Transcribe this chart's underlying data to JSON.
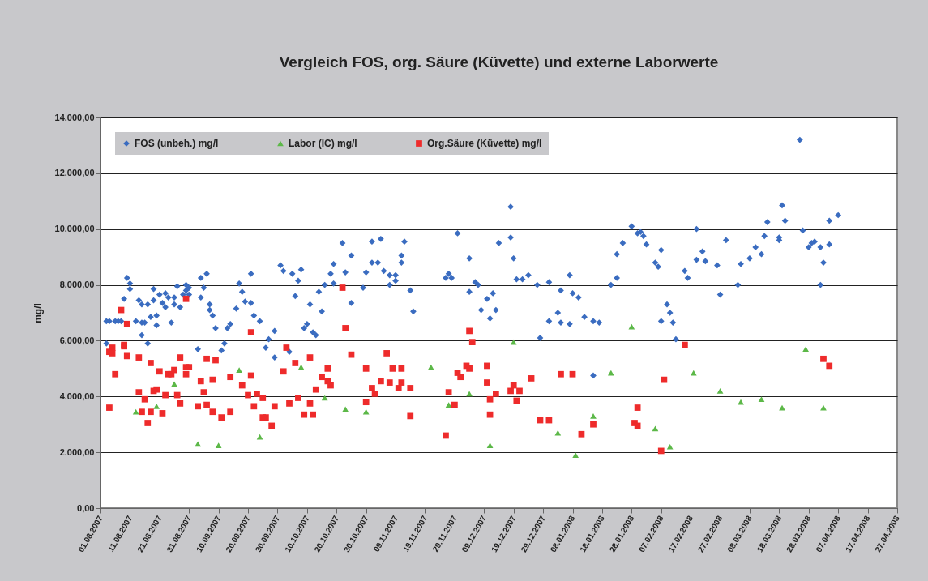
{
  "chart_data": {
    "type": "scatter",
    "title": "Vergleich FOS, org. Säure (Küvette) und externe Laborwerte",
    "ylabel": "mg/l",
    "ylim": [
      0,
      14000
    ],
    "yticks": [
      {
        "value": 0,
        "label": "0,00"
      },
      {
        "value": 2000,
        "label": "2.000,00"
      },
      {
        "value": 4000,
        "label": "4.000,00"
      },
      {
        "value": 6000,
        "label": "6.000,00"
      },
      {
        "value": 8000,
        "label": "8.000,00"
      },
      {
        "value": 10000,
        "label": "10.000,00"
      },
      {
        "value": 12000,
        "label": "12.000,00"
      },
      {
        "value": 14000,
        "label": "14.000,00"
      }
    ],
    "xlim": [
      "2007-08-01",
      "2008-04-27"
    ],
    "xticks": [
      {
        "value": "2007-08-01",
        "label": "01.08.2007"
      },
      {
        "value": "2007-08-11",
        "label": "11.08.2007"
      },
      {
        "value": "2007-08-21",
        "label": "21.08.2007"
      },
      {
        "value": "2007-08-31",
        "label": "31.08.2007"
      },
      {
        "value": "2007-09-10",
        "label": "10.09.2007"
      },
      {
        "value": "2007-09-20",
        "label": "20.09.2007"
      },
      {
        "value": "2007-09-30",
        "label": "30.09.2007"
      },
      {
        "value": "2007-10-10",
        "label": "10.10.2007"
      },
      {
        "value": "2007-10-20",
        "label": "20.10.2007"
      },
      {
        "value": "2007-10-30",
        "label": "30.10.2007"
      },
      {
        "value": "2007-11-09",
        "label": "09.11.2007"
      },
      {
        "value": "2007-11-19",
        "label": "19.11.2007"
      },
      {
        "value": "2007-11-29",
        "label": "29.11.2007"
      },
      {
        "value": "2007-12-09",
        "label": "09.12.2007"
      },
      {
        "value": "2007-12-19",
        "label": "19.12.2007"
      },
      {
        "value": "2007-12-29",
        "label": "29.12.2007"
      },
      {
        "value": "2008-01-08",
        "label": "08.01.2008"
      },
      {
        "value": "2008-01-18",
        "label": "18.01.2008"
      },
      {
        "value": "2008-01-28",
        "label": "28.01.2008"
      },
      {
        "value": "2008-02-07",
        "label": "07.02.2008"
      },
      {
        "value": "2008-02-17",
        "label": "17.02.2008"
      },
      {
        "value": "2008-02-27",
        "label": "27.02.2008"
      },
      {
        "value": "2008-03-08",
        "label": "08.03.2008"
      },
      {
        "value": "2008-03-18",
        "label": "18.03.2008"
      },
      {
        "value": "2008-03-28",
        "label": "28.03.2008"
      },
      {
        "value": "2008-04-07",
        "label": "07.04.2008"
      },
      {
        "value": "2008-04-17",
        "label": "17.04.2008"
      },
      {
        "value": "2008-04-27",
        "label": "27.04.2008"
      }
    ],
    "grid": "y",
    "legend": "top left",
    "series": [
      {
        "name": "FOS (unbeh.) mg/l",
        "color": "#3a6cc0",
        "marker": "diamond",
        "x": [
          "2007-08-03",
          "2007-08-03",
          "2007-08-04",
          "2007-08-06",
          "2007-08-07",
          "2007-08-08",
          "2007-08-09",
          "2007-08-10",
          "2007-08-11",
          "2007-08-11",
          "2007-08-13",
          "2007-08-14",
          "2007-08-15",
          "2007-08-15",
          "2007-08-15",
          "2007-08-16",
          "2007-08-17",
          "2007-08-17",
          "2007-08-18",
          "2007-08-19",
          "2007-08-19",
          "2007-08-20",
          "2007-08-20",
          "2007-08-21",
          "2007-08-22",
          "2007-08-23",
          "2007-08-23",
          "2007-08-24",
          "2007-08-25",
          "2007-08-26",
          "2007-08-26",
          "2007-08-27",
          "2007-08-28",
          "2007-08-29",
          "2007-08-30",
          "2007-08-30",
          "2007-08-31",
          "2007-08-31",
          "2007-09-03",
          "2007-09-04",
          "2007-09-04",
          "2007-09-05",
          "2007-09-06",
          "2007-09-07",
          "2007-09-07",
          "2007-09-08",
          "2007-09-09",
          "2007-09-11",
          "2007-09-12",
          "2007-09-13",
          "2007-09-14",
          "2007-09-16",
          "2007-09-17",
          "2007-09-18",
          "2007-09-19",
          "2007-09-21",
          "2007-09-21",
          "2007-09-22",
          "2007-09-24",
          "2007-09-26",
          "2007-09-27",
          "2007-09-29",
          "2007-09-29",
          "2007-10-01",
          "2007-10-02",
          "2007-10-04",
          "2007-10-05",
          "2007-10-06",
          "2007-10-07",
          "2007-10-08",
          "2007-10-09",
          "2007-10-10",
          "2007-10-11",
          "2007-10-12",
          "2007-10-13",
          "2007-10-14",
          "2007-10-15",
          "2007-10-16",
          "2007-10-18",
          "2007-10-19",
          "2007-10-19",
          "2007-10-22",
          "2007-10-23",
          "2007-10-25",
          "2007-10-25",
          "2007-10-29",
          "2007-10-30",
          "2007-11-01",
          "2007-11-01",
          "2007-11-03",
          "2007-11-04",
          "2007-11-05",
          "2007-11-07",
          "2007-11-07",
          "2007-11-09",
          "2007-11-09",
          "2007-11-11",
          "2007-11-11",
          "2007-11-12",
          "2007-11-14",
          "2007-11-15",
          "2007-11-26",
          "2007-11-27",
          "2007-11-28",
          "2007-11-30",
          "2007-12-04",
          "2007-12-04",
          "2007-12-06",
          "2007-12-07",
          "2007-12-08",
          "2007-12-10",
          "2007-12-11",
          "2007-12-12",
          "2007-12-13",
          "2007-12-14",
          "2007-12-18",
          "2007-12-18",
          "2007-12-19",
          "2007-12-20",
          "2007-12-22",
          "2007-12-24",
          "2007-12-27",
          "2007-12-28",
          "2007-12-31",
          "2007-12-31",
          "2008-01-03",
          "2008-01-04",
          "2008-01-04",
          "2008-01-07",
          "2008-01-07",
          "2008-01-08",
          "2008-01-10",
          "2008-01-12",
          "2008-01-15",
          "2008-01-15",
          "2008-01-17",
          "2008-01-21",
          "2008-01-23",
          "2008-01-23",
          "2008-01-25",
          "2008-01-28",
          "2008-01-30",
          "2008-01-31",
          "2008-02-01",
          "2008-02-02",
          "2008-02-05",
          "2008-02-06",
          "2008-02-07",
          "2008-02-07",
          "2008-02-09",
          "2008-02-10",
          "2008-02-11",
          "2008-02-12",
          "2008-02-15",
          "2008-02-16",
          "2008-02-19",
          "2008-02-19",
          "2008-02-21",
          "2008-02-22",
          "2008-02-26",
          "2008-02-27",
          "2008-02-29",
          "2008-03-04",
          "2008-03-05",
          "2008-03-08",
          "2008-03-10",
          "2008-03-12",
          "2008-03-13",
          "2008-03-14",
          "2008-03-18",
          "2008-03-18",
          "2008-03-19",
          "2008-03-20",
          "2008-03-25",
          "2008-03-26",
          "2008-03-28",
          "2008-03-29",
          "2008-03-30",
          "2008-04-01",
          "2008-04-01",
          "2008-04-02",
          "2008-04-04",
          "2008-04-04",
          "2008-04-07"
        ],
        "values": [
          6700,
          5900,
          6700,
          6700,
          6700,
          6700,
          7500,
          8250,
          8050,
          7850,
          6700,
          7450,
          7300,
          6650,
          6200,
          6650,
          5900,
          7300,
          6850,
          7850,
          7450,
          6900,
          6550,
          7650,
          7350,
          7200,
          7700,
          7550,
          6650,
          7550,
          7300,
          7950,
          7200,
          7650,
          7800,
          8000,
          7900,
          7650,
          5700,
          8250,
          7550,
          7900,
          8400,
          7300,
          7100,
          6900,
          6450,
          5650,
          5900,
          6450,
          6600,
          7150,
          8050,
          7750,
          7400,
          8400,
          7350,
          6900,
          6700,
          5750,
          6050,
          6350,
          5400,
          8700,
          8500,
          5600,
          8400,
          7600,
          8150,
          8550,
          6450,
          6600,
          7300,
          6300,
          6200,
          7750,
          7050,
          8000,
          8400,
          8750,
          8050,
          9500,
          8450,
          9050,
          7350,
          7900,
          8450,
          8800,
          9550,
          8800,
          9650,
          8500,
          8000,
          8350,
          8350,
          8150,
          8800,
          9050,
          9550,
          7800,
          7050,
          8250,
          8400,
          8250,
          9850,
          7750,
          8950,
          8100,
          8000,
          7100,
          7500,
          6800,
          7700,
          7100,
          9500,
          10800,
          9700,
          8950,
          8200,
          8200,
          8350,
          8000,
          6100,
          8100,
          6700,
          7000,
          7800,
          6650,
          8350,
          6600,
          7700,
          7550,
          6850,
          4750,
          6700,
          6650,
          8000,
          8250,
          9100,
          9500,
          10100,
          9850,
          9900,
          9750,
          9450,
          8800,
          8650,
          9250,
          6700,
          7300,
          7000,
          6650,
          6050,
          8500,
          8250,
          10000,
          8900,
          9200,
          8850,
          8700,
          7650,
          9600,
          8000,
          8750,
          8950,
          9350,
          9100,
          9750,
          10250,
          9700,
          9600,
          10850,
          10300,
          13200,
          9950,
          9350,
          9500,
          9550,
          9350,
          8000,
          8800,
          10300,
          9450,
          10500
        ]
      },
      {
        "name": "Labor (IC) mg/l",
        "color": "#5cb848",
        "marker": "triangle",
        "x": [
          "2007-08-13",
          "2007-08-20",
          "2007-08-26",
          "2007-09-03",
          "2007-09-10",
          "2007-09-17",
          "2007-09-24",
          "2007-10-08",
          "2007-10-16",
          "2007-10-23",
          "2007-10-30",
          "2007-11-21",
          "2007-11-27",
          "2007-12-04",
          "2007-12-11",
          "2007-12-19",
          "2008-01-03",
          "2008-01-09",
          "2008-01-15",
          "2008-01-21",
          "2008-01-28",
          "2008-02-05",
          "2008-02-10",
          "2008-02-18",
          "2008-02-27",
          "2008-03-05",
          "2008-03-12",
          "2008-03-19",
          "2008-03-27",
          "2008-04-02"
        ],
        "values": [
          3450,
          3650,
          4450,
          2300,
          2250,
          4950,
          2550,
          5050,
          3950,
          3550,
          3450,
          5050,
          3700,
          4100,
          2250,
          5950,
          2700,
          1900,
          3300,
          4850,
          6500,
          2850,
          2200,
          4850,
          4200,
          3800,
          3900,
          3600,
          5700,
          3600
        ]
      },
      {
        "name": "Org.Säure (Küvette) mg/l",
        "color": "#ee2b2b",
        "marker": "square",
        "x": [
          "2007-08-04",
          "2007-08-04",
          "2007-08-05",
          "2007-08-05",
          "2007-08-06",
          "2007-08-08",
          "2007-08-09",
          "2007-08-09",
          "2007-08-10",
          "2007-08-10",
          "2007-08-14",
          "2007-08-14",
          "2007-08-15",
          "2007-08-16",
          "2007-08-17",
          "2007-08-18",
          "2007-08-18",
          "2007-08-19",
          "2007-08-20",
          "2007-08-21",
          "2007-08-22",
          "2007-08-23",
          "2007-08-24",
          "2007-08-25",
          "2007-08-26",
          "2007-08-27",
          "2007-08-28",
          "2007-08-28",
          "2007-08-30",
          "2007-08-30",
          "2007-08-30",
          "2007-08-31",
          "2007-09-03",
          "2007-09-04",
          "2007-09-05",
          "2007-09-06",
          "2007-09-06",
          "2007-09-08",
          "2007-09-08",
          "2007-09-09",
          "2007-09-11",
          "2007-09-14",
          "2007-09-14",
          "2007-09-18",
          "2007-09-20",
          "2007-09-21",
          "2007-09-21",
          "2007-09-22",
          "2007-09-23",
          "2007-09-25",
          "2007-09-25",
          "2007-09-26",
          "2007-09-28",
          "2007-09-29",
          "2007-10-02",
          "2007-10-03",
          "2007-10-04",
          "2007-10-06",
          "2007-10-07",
          "2007-10-09",
          "2007-10-11",
          "2007-10-11",
          "2007-10-12",
          "2007-10-13",
          "2007-10-15",
          "2007-10-17",
          "2007-10-17",
          "2007-10-18",
          "2007-10-22",
          "2007-10-23",
          "2007-10-25",
          "2007-10-30",
          "2007-10-30",
          "2007-11-01",
          "2007-11-02",
          "2007-11-04",
          "2007-11-06",
          "2007-11-07",
          "2007-11-08",
          "2007-11-10",
          "2007-11-11",
          "2007-11-11",
          "2007-11-14",
          "2007-11-14",
          "2007-11-26",
          "2007-11-27",
          "2007-11-29",
          "2007-11-30",
          "2007-12-01",
          "2007-12-03",
          "2007-12-04",
          "2007-12-04",
          "2007-12-05",
          "2007-12-10",
          "2007-12-10",
          "2007-12-11",
          "2007-12-11",
          "2007-12-13",
          "2007-12-18",
          "2007-12-19",
          "2007-12-20",
          "2007-12-21",
          "2007-12-25",
          "2007-12-28",
          "2007-12-31",
          "2008-01-04",
          "2008-01-08",
          "2008-01-11",
          "2008-01-15",
          "2008-01-29",
          "2008-01-30",
          "2008-01-30",
          "2008-02-07",
          "2008-02-08",
          "2008-02-15",
          "2008-04-02",
          "2008-04-04"
        ],
        "values": [
          3600,
          5600,
          5550,
          5750,
          4800,
          7100,
          5850,
          5800,
          6600,
          5450,
          5400,
          4150,
          3450,
          3900,
          3050,
          3450,
          5200,
          4200,
          4250,
          4900,
          3400,
          4050,
          4800,
          4800,
          4950,
          4050,
          5400,
          3750,
          4800,
          5050,
          7500,
          5050,
          3650,
          4550,
          4150,
          3700,
          5350,
          4600,
          3450,
          5300,
          3250,
          3450,
          4700,
          4400,
          4050,
          6300,
          4750,
          3650,
          4100,
          3950,
          3250,
          3250,
          2950,
          3650,
          4900,
          5750,
          3750,
          5200,
          3950,
          3350,
          5400,
          3750,
          3350,
          4250,
          4700,
          5000,
          4550,
          4400,
          7900,
          6450,
          5500,
          3800,
          5000,
          4300,
          4100,
          4550,
          5550,
          4500,
          5000,
          4300,
          4500,
          5000,
          4300,
          3300,
          2600,
          4150,
          3700,
          4850,
          4700,
          5100,
          6350,
          5000,
          5950,
          4500,
          5100,
          3900,
          3350,
          4100,
          4200,
          4400,
          3850,
          4200,
          4650,
          3150,
          3150,
          4800,
          4800,
          2650,
          3000,
          3050,
          2950,
          3600,
          2050,
          4600,
          5850,
          5350,
          5100
        ]
      }
    ]
  }
}
